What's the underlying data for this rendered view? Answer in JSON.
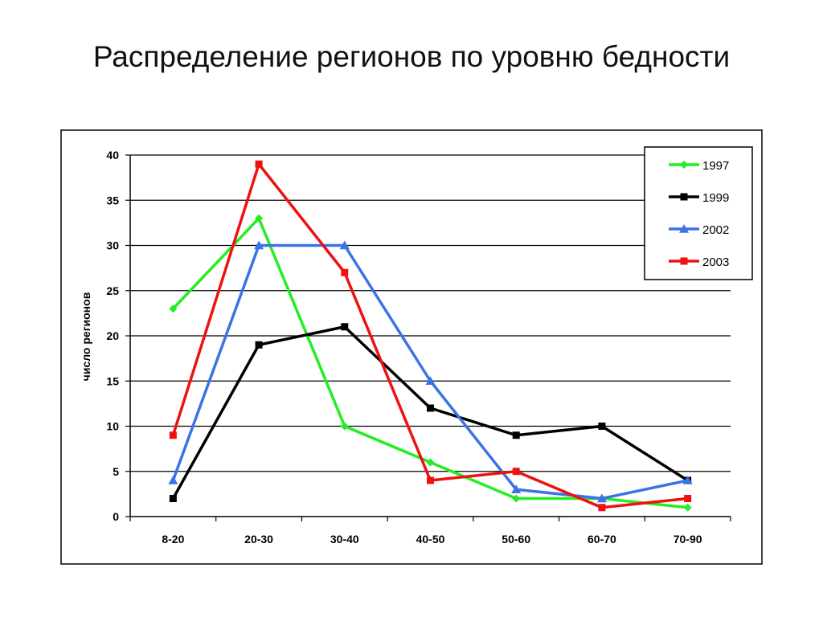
{
  "slide": {
    "title": "Распределение регионов по уровню бедности"
  },
  "chart_data": {
    "type": "line",
    "title": "",
    "xlabel": "",
    "ylabel": "число регионов",
    "categories": [
      "8-20",
      "20-30",
      "30-40",
      "40-50",
      "50-60",
      "60-70",
      "70-90"
    ],
    "ylim": [
      0,
      40
    ],
    "yticks": [
      0,
      5,
      10,
      15,
      20,
      25,
      30,
      35,
      40
    ],
    "grid": true,
    "legend_position": "top-right",
    "series": [
      {
        "name": "1997",
        "color": "#22ee22",
        "marker": "diamond",
        "values": [
          23,
          33,
          10,
          6,
          2,
          2,
          1
        ]
      },
      {
        "name": "1999",
        "color": "#000000",
        "marker": "square",
        "values": [
          2,
          19,
          21,
          12,
          9,
          10,
          4
        ]
      },
      {
        "name": "2002",
        "color": "#3b73e6",
        "marker": "triangle",
        "values": [
          4,
          30,
          30,
          15,
          3,
          2,
          4
        ]
      },
      {
        "name": "2003",
        "color": "#ee1111",
        "marker": "square",
        "values": [
          9,
          39,
          27,
          4,
          5,
          1,
          2
        ]
      }
    ]
  }
}
